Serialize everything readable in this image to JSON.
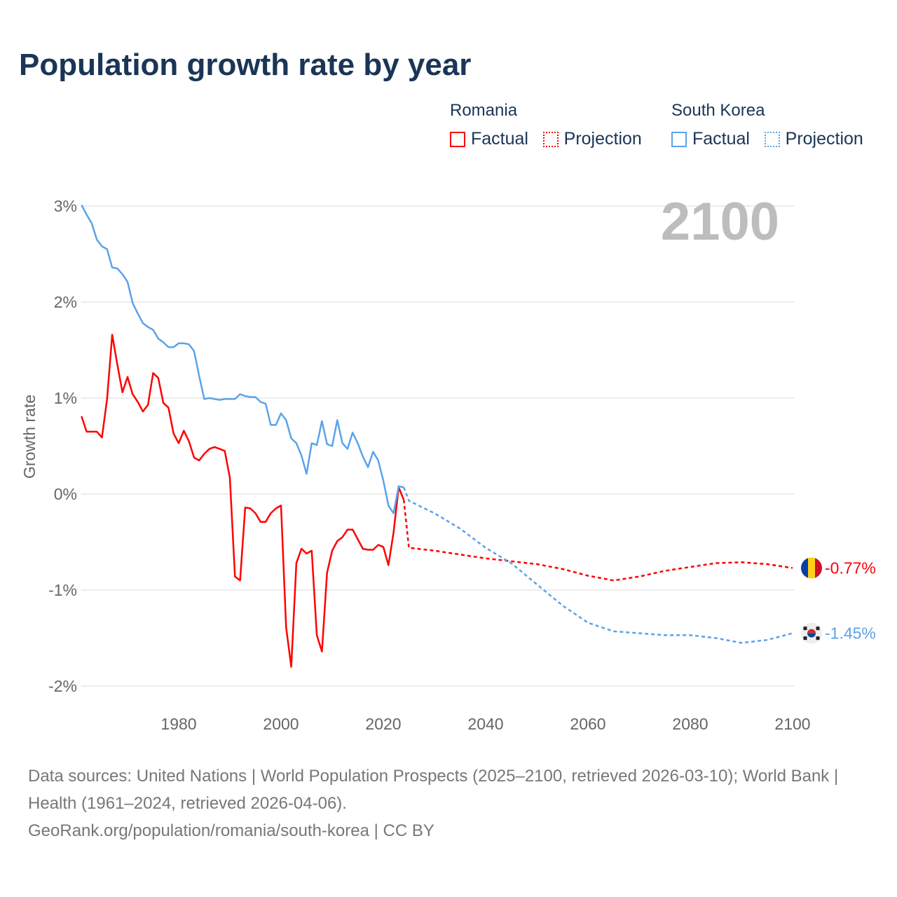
{
  "title": "Population growth rate by year",
  "legend": {
    "groups": [
      {
        "name": "Romania",
        "factual": "Factual",
        "projection": "Projection",
        "color": "#ff0000"
      },
      {
        "name": "South Korea",
        "factual": "Factual",
        "projection": "Projection",
        "color": "#5ba3e8"
      }
    ]
  },
  "year_label": "2100",
  "sources": {
    "line1": "Data sources: United Nations | World Population Prospects (2025–2100, retrieved 2026-03-10); World Bank | Health (1961–2024, retrieved 2026-04-06).",
    "line2": "GeoRank.org/population/romania/south-korea | CC BY"
  },
  "chart_data": {
    "type": "line",
    "title": "Population growth rate by year",
    "xlabel": "",
    "ylabel": "Growth rate",
    "xlim": [
      1961,
      2100
    ],
    "ylim": [
      -2.2,
      3.1
    ],
    "xticks": [
      1980,
      2000,
      2020,
      2040,
      2060,
      2080,
      2100
    ],
    "xtick_labels": [
      "1980",
      "2000",
      "2020",
      "2040",
      "2060",
      "2080",
      "2100"
    ],
    "yticks": [
      3,
      2,
      1,
      0,
      -1,
      -2
    ],
    "ytick_labels": [
      "3%",
      "2%",
      "1%",
      "0%",
      "-1%",
      "-2%"
    ],
    "grid": true,
    "series": [
      {
        "name": "Romania Factual",
        "color": "#ff0000",
        "dashed": false,
        "start_year": 1961,
        "values": [
          0.81,
          0.65,
          0.65,
          0.65,
          0.59,
          0.99,
          1.66,
          1.35,
          1.06,
          1.22,
          1.04,
          0.96,
          0.86,
          0.93,
          1.26,
          1.21,
          0.95,
          0.9,
          0.63,
          0.53,
          0.66,
          0.55,
          0.38,
          0.35,
          0.42,
          0.47,
          0.49,
          0.47,
          0.45,
          0.17,
          -0.86,
          -0.9,
          -0.14,
          -0.15,
          -0.2,
          -0.29,
          -0.29,
          -0.2,
          -0.15,
          -0.12,
          -1.39,
          -1.8,
          -0.72,
          -0.57,
          -0.62,
          -0.59,
          -1.47,
          -1.64,
          -0.82,
          -0.59,
          -0.49,
          -0.45,
          -0.37,
          -0.37,
          -0.47,
          -0.57,
          -0.58,
          -0.58,
          -0.53,
          -0.55,
          -0.74,
          -0.4,
          0.07,
          -0.06
        ]
      },
      {
        "name": "Romania Projection",
        "color": "#ff0000",
        "dashed": true,
        "points": [
          [
            2024,
            -0.06
          ],
          [
            2025,
            -0.56
          ],
          [
            2030,
            -0.59
          ],
          [
            2035,
            -0.63
          ],
          [
            2040,
            -0.67
          ],
          [
            2045,
            -0.7
          ],
          [
            2050,
            -0.73
          ],
          [
            2055,
            -0.78
          ],
          [
            2060,
            -0.85
          ],
          [
            2065,
            -0.9
          ],
          [
            2070,
            -0.86
          ],
          [
            2075,
            -0.8
          ],
          [
            2080,
            -0.76
          ],
          [
            2085,
            -0.72
          ],
          [
            2090,
            -0.71
          ],
          [
            2095,
            -0.73
          ],
          [
            2100,
            -0.77
          ]
        ]
      },
      {
        "name": "South Korea Factual",
        "color": "#5ba3e8",
        "dashed": false,
        "start_year": 1961,
        "values": [
          3.01,
          2.91,
          2.82,
          2.65,
          2.58,
          2.55,
          2.36,
          2.35,
          2.29,
          2.21,
          1.99,
          1.88,
          1.78,
          1.74,
          1.71,
          1.62,
          1.58,
          1.53,
          1.53,
          1.57,
          1.57,
          1.56,
          1.49,
          1.23,
          0.99,
          1.0,
          0.99,
          0.98,
          0.99,
          0.99,
          0.99,
          1.04,
          1.02,
          1.01,
          1.01,
          0.96,
          0.94,
          0.72,
          0.72,
          0.84,
          0.77,
          0.58,
          0.53,
          0.4,
          0.21,
          0.53,
          0.51,
          0.76,
          0.52,
          0.5,
          0.77,
          0.53,
          0.47,
          0.64,
          0.53,
          0.39,
          0.28,
          0.44,
          0.35,
          0.14,
          -0.12,
          -0.2,
          0.08,
          0.07
        ]
      },
      {
        "name": "South Korea Projection",
        "color": "#5ba3e8",
        "dashed": true,
        "points": [
          [
            2024,
            0.07
          ],
          [
            2025,
            -0.07
          ],
          [
            2030,
            -0.2
          ],
          [
            2035,
            -0.36
          ],
          [
            2040,
            -0.56
          ],
          [
            2045,
            -0.72
          ],
          [
            2050,
            -0.94
          ],
          [
            2055,
            -1.16
          ],
          [
            2060,
            -1.34
          ],
          [
            2065,
            -1.43
          ],
          [
            2070,
            -1.45
          ],
          [
            2075,
            -1.47
          ],
          [
            2080,
            -1.47
          ],
          [
            2085,
            -1.5
          ],
          [
            2090,
            -1.55
          ],
          [
            2095,
            -1.52
          ],
          [
            2100,
            -1.45
          ]
        ]
      }
    ],
    "end_labels": [
      {
        "country": "Romania",
        "text": "-0.77%",
        "value": -0.77,
        "color": "#ff0000",
        "icon": "romania-flag-icon"
      },
      {
        "country": "South Korea",
        "text": "-1.45%",
        "value": -1.45,
        "color": "#5ba3e8",
        "icon": "south-korea-flag-icon"
      }
    ]
  }
}
